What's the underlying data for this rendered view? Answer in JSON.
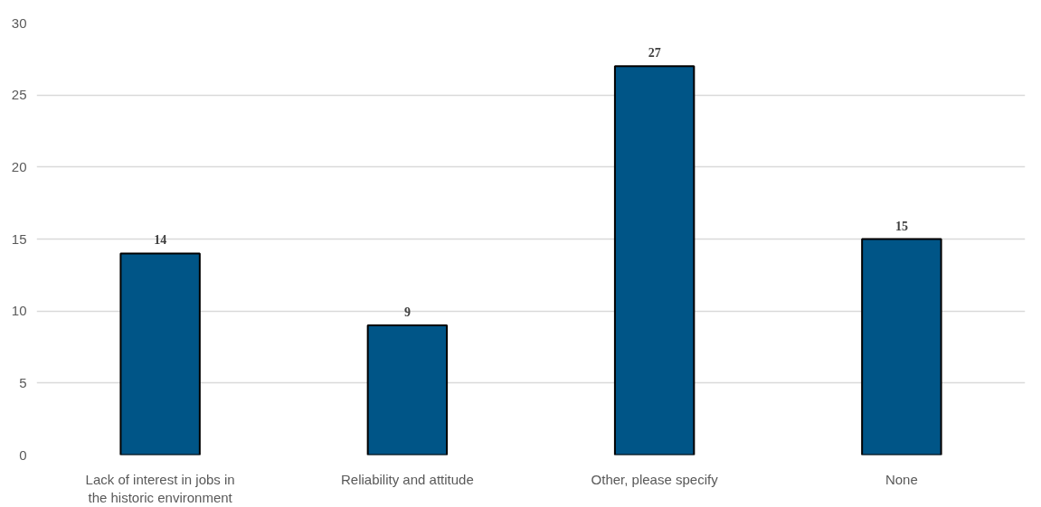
{
  "chart_data": {
    "type": "bar",
    "categories": [
      "Lack of interest in jobs in\nthe historic environment",
      "Reliability and attitude",
      "Other, please specify",
      "None"
    ],
    "values": [
      14,
      9,
      27,
      15
    ],
    "color": "#005587",
    "ylim": [
      0,
      30
    ],
    "yticks": [
      0,
      5,
      10,
      15,
      20,
      25,
      30
    ],
    "grid": "y",
    "data_labels": true
  }
}
